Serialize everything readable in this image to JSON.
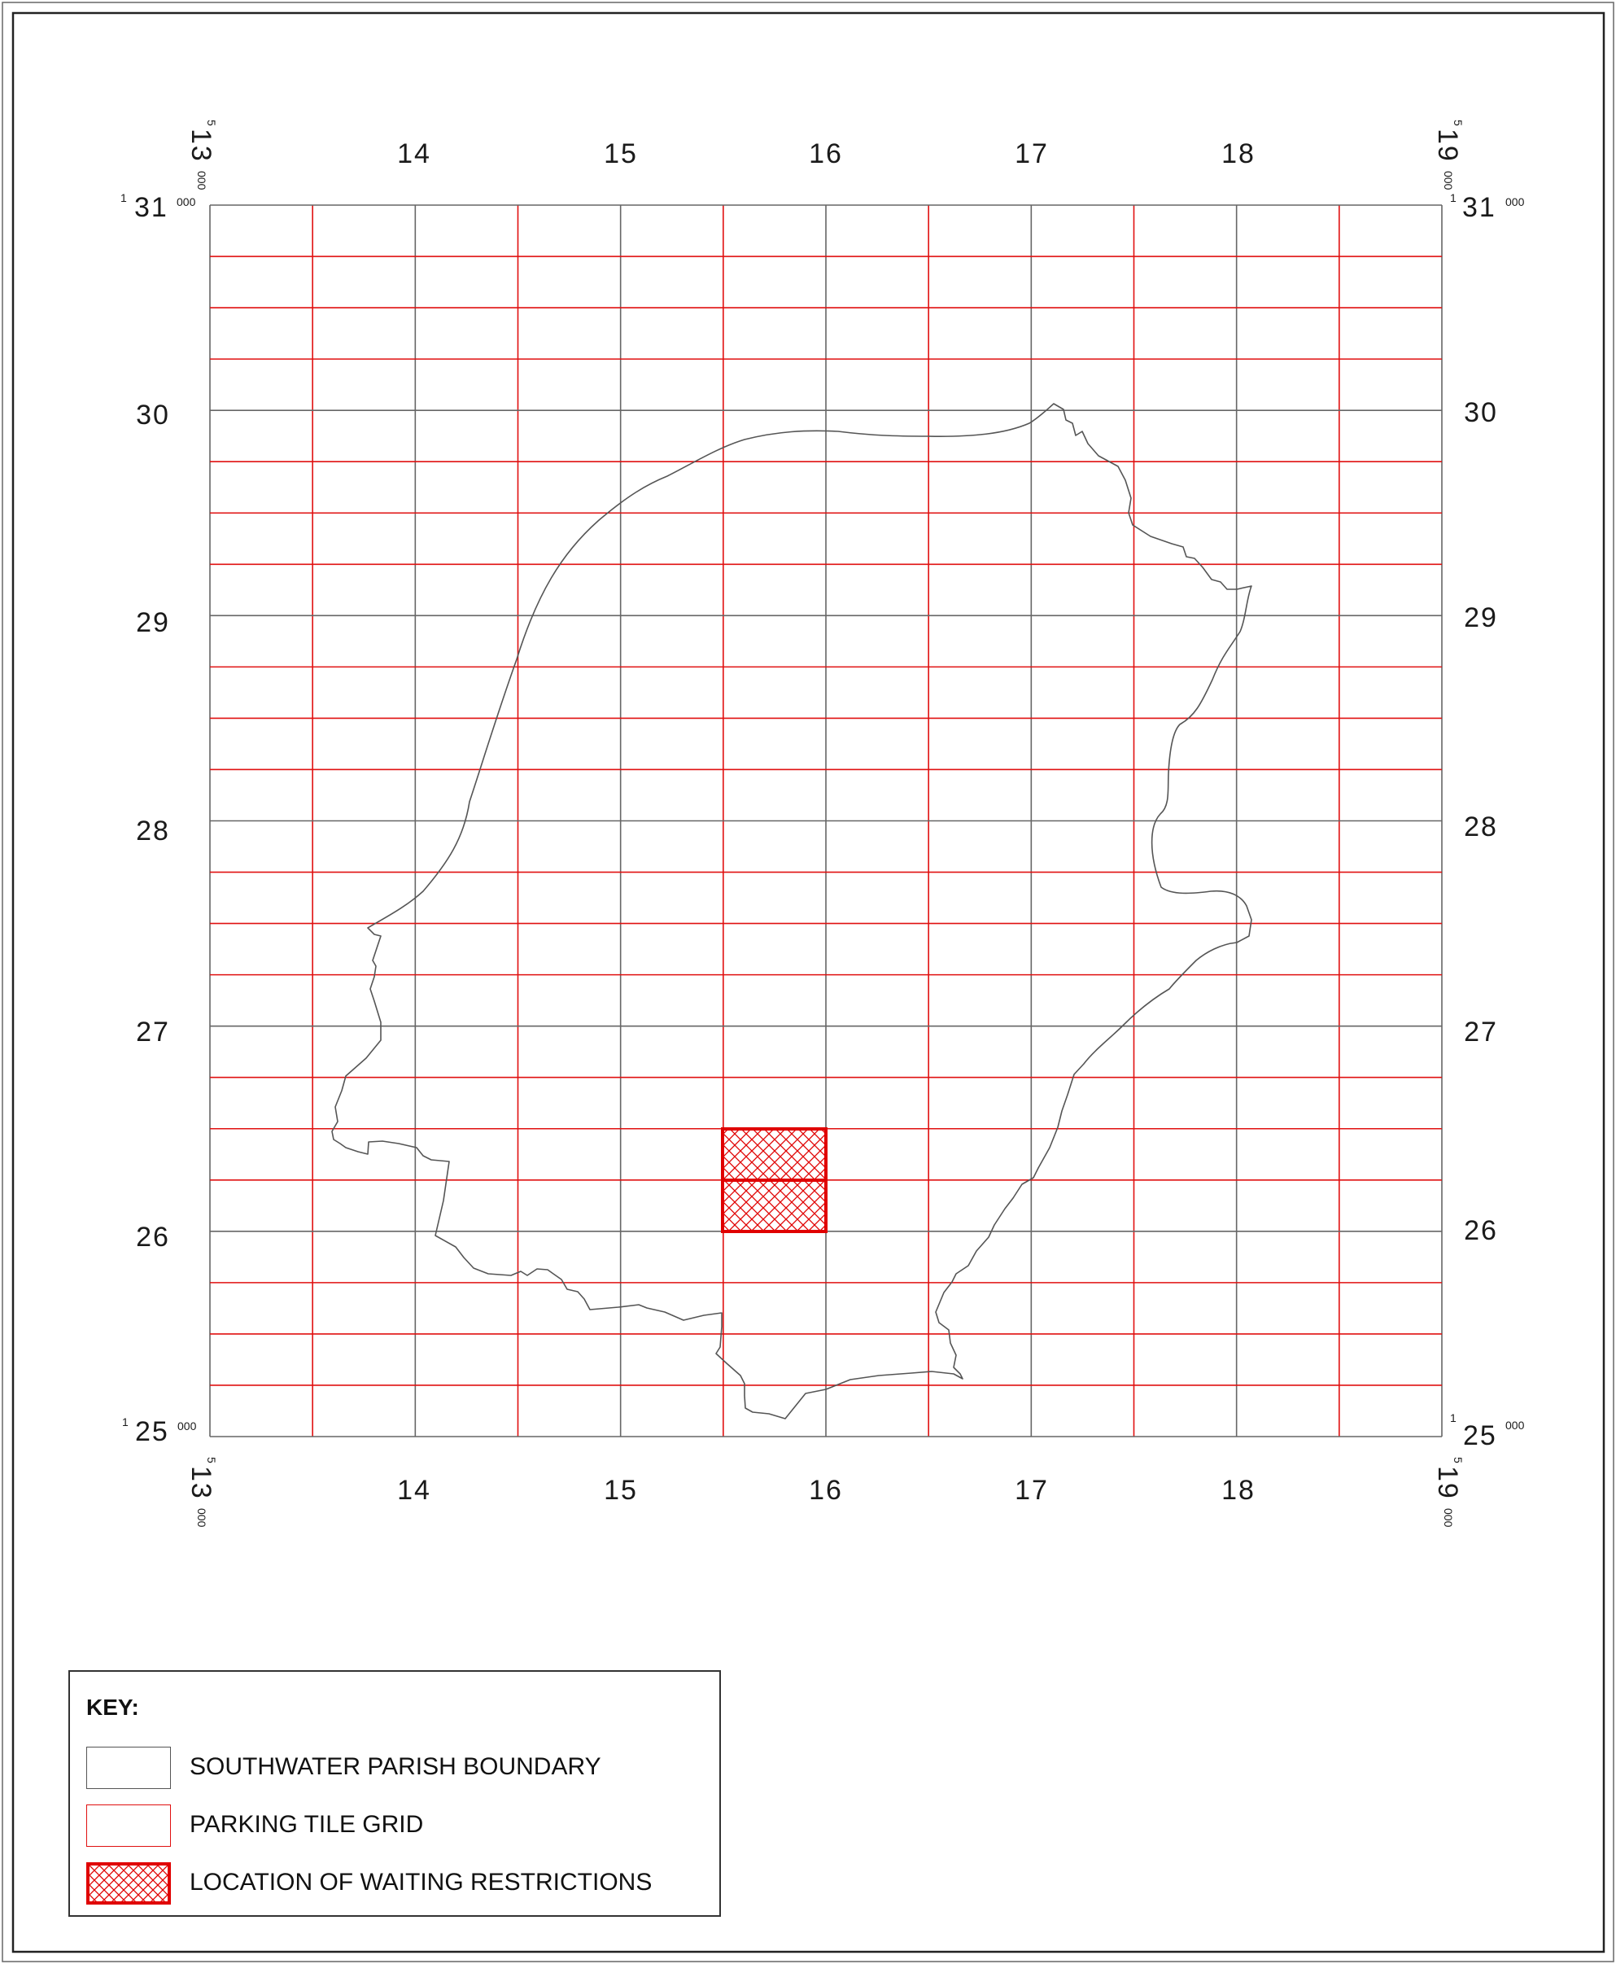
{
  "map": {
    "x_axis": {
      "start": {
        "major": "13",
        "prefix": "5",
        "suffix": "000"
      },
      "end": {
        "major": "19",
        "prefix": "5",
        "suffix": "000"
      },
      "labels": [
        "14",
        "15",
        "16",
        "17",
        "18"
      ]
    },
    "y_axis": {
      "top": {
        "major": "31",
        "prefix": "1",
        "suffix": "000"
      },
      "bottom": {
        "major": "25",
        "prefix": "1",
        "suffix": "000"
      },
      "labels": [
        "30",
        "29",
        "28",
        "27",
        "26"
      ]
    },
    "grid": {
      "columns": 12,
      "rows": 24,
      "color": "#e01010"
    },
    "restriction_tiles": [
      "upper",
      "lower"
    ]
  },
  "legend": {
    "title": "KEY:",
    "items": [
      {
        "label": "SOUTHWATER PARISH BOUNDARY",
        "swatch": "boundary",
        "color": "#555555"
      },
      {
        "label": "PARKING TILE GRID",
        "swatch": "grid",
        "color": "#e01010"
      },
      {
        "label": "LOCATION OF WAITING RESTRICTIONS",
        "swatch": "hatch",
        "color": "#e00000"
      }
    ]
  }
}
